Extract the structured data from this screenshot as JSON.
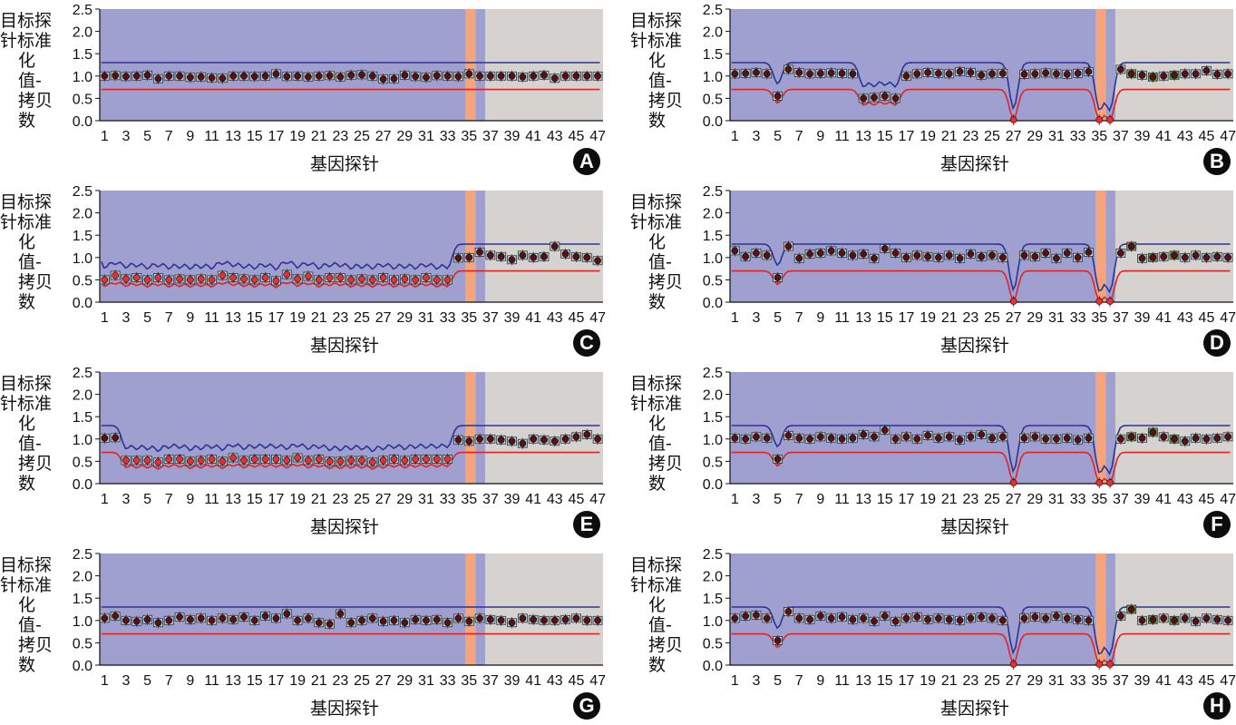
{
  "figure": {
    "ylabel_line1": "目标探针标准",
    "ylabel_line2": "化值-拷贝数",
    "xlabel": "基因探针",
    "colors": {
      "bg_main": "#9f9fd0",
      "bg_gray": "#d6d2d0",
      "orange_band": "#f6a47a",
      "upper_line": "#2b3596",
      "lower_line": "#e02424",
      "box_blue": "#a9d8ec",
      "box_green": "#46b049",
      "point_dark": "#5a1010",
      "point_red": "#e53030",
      "point_purple": "#8a3f9a"
    }
  },
  "chart_data": [
    {
      "panel": "A",
      "type": "scatter",
      "xlabel": "基因探针",
      "ylabel": "目标探针标准化值-拷贝数",
      "ylim": [
        0,
        2.5
      ],
      "yticks": [
        0,
        0.5,
        1.0,
        1.5,
        2.0,
        2.5
      ],
      "xticks": [
        1,
        3,
        5,
        7,
        9,
        11,
        13,
        15,
        17,
        19,
        21,
        23,
        25,
        27,
        29,
        31,
        33,
        35,
        37,
        39,
        41,
        43,
        45,
        47
      ],
      "x": [
        1,
        2,
        3,
        4,
        5,
        6,
        7,
        8,
        9,
        10,
        11,
        12,
        13,
        14,
        15,
        16,
        17,
        18,
        19,
        20,
        21,
        22,
        23,
        24,
        25,
        26,
        27,
        28,
        29,
        30,
        31,
        32,
        33,
        34,
        35,
        36,
        37,
        38,
        39,
        40,
        41,
        42,
        43,
        44,
        45,
        46,
        47
      ],
      "y": [
        1.0,
        1.01,
        0.99,
        1.0,
        1.02,
        0.94,
        1.0,
        1.0,
        0.97,
        0.98,
        0.96,
        0.95,
        1.0,
        1.0,
        0.99,
        1.0,
        1.05,
        0.99,
        1.0,
        0.98,
        1.0,
        1.01,
        0.98,
        1.02,
        1.03,
        1.0,
        0.93,
        0.94,
        1.02,
        0.99,
        0.97,
        1.01,
        1.0,
        0.99,
        1.05,
        1.0,
        1.0,
        1.0,
        1.0,
        0.98,
        1.0,
        1.02,
        0.95,
        1.0,
        1.0,
        1.0,
        1.0
      ],
      "upper_threshold": 1.3,
      "lower_threshold": 0.7,
      "badge": "A"
    },
    {
      "panel": "B",
      "type": "scatter",
      "xlabel": "基因探针",
      "ylabel": "目标探针标准化值-拷贝数",
      "ylim": [
        0,
        2.5
      ],
      "yticks": [
        0,
        0.5,
        1.0,
        1.5,
        2.0,
        2.5
      ],
      "xticks": [
        1,
        3,
        5,
        7,
        9,
        11,
        13,
        15,
        17,
        19,
        21,
        23,
        25,
        27,
        29,
        31,
        33,
        35,
        37,
        39,
        41,
        43,
        45,
        47
      ],
      "x": [
        1,
        2,
        3,
        4,
        5,
        6,
        7,
        8,
        9,
        10,
        11,
        12,
        13,
        14,
        15,
        16,
        17,
        18,
        19,
        20,
        21,
        22,
        23,
        24,
        25,
        26,
        27,
        28,
        29,
        30,
        31,
        32,
        33,
        34,
        35,
        36,
        37,
        38,
        39,
        40,
        41,
        42,
        43,
        44,
        45,
        46,
        47
      ],
      "y": [
        1.05,
        1.06,
        1.08,
        1.05,
        0.55,
        1.15,
        1.08,
        1.05,
        1.06,
        1.07,
        1.06,
        1.05,
        0.5,
        0.52,
        0.55,
        0.5,
        1.0,
        1.05,
        1.08,
        1.06,
        1.05,
        1.1,
        1.08,
        1.02,
        1.05,
        1.06,
        0.02,
        1.04,
        1.05,
        1.07,
        1.05,
        1.04,
        1.06,
        1.1,
        0.02,
        0.02,
        1.15,
        1.05,
        1.02,
        0.98,
        1.0,
        1.02,
        1.05,
        1.05,
        1.12,
        1.04,
        1.05
      ],
      "upper_threshold": 1.3,
      "lower_threshold": 0.7,
      "badge": "B"
    },
    {
      "panel": "C",
      "type": "scatter",
      "xlabel": "基因探针",
      "ylabel": "目标探针标准化值-拷贝数",
      "ylim": [
        0,
        2.5
      ],
      "yticks": [
        0,
        0.5,
        1.0,
        1.5,
        2.0,
        2.5
      ],
      "xticks": [
        1,
        3,
        5,
        7,
        9,
        11,
        13,
        15,
        17,
        19,
        21,
        23,
        25,
        27,
        29,
        31,
        33,
        35,
        37,
        39,
        41,
        43,
        45,
        47
      ],
      "x": [
        1,
        2,
        3,
        4,
        5,
        6,
        7,
        8,
        9,
        10,
        11,
        12,
        13,
        14,
        15,
        16,
        17,
        18,
        19,
        20,
        21,
        22,
        23,
        24,
        25,
        26,
        27,
        28,
        29,
        30,
        31,
        32,
        33,
        34,
        35,
        36,
        37,
        38,
        39,
        40,
        41,
        42,
        43,
        44,
        45,
        46,
        47
      ],
      "y": [
        0.5,
        0.6,
        0.52,
        0.55,
        0.5,
        0.55,
        0.5,
        0.52,
        0.5,
        0.52,
        0.5,
        0.6,
        0.55,
        0.52,
        0.5,
        0.55,
        0.48,
        0.62,
        0.52,
        0.58,
        0.5,
        0.55,
        0.55,
        0.5,
        0.52,
        0.5,
        0.55,
        0.5,
        0.52,
        0.5,
        0.55,
        0.5,
        0.5,
        0.99,
        1.0,
        1.12,
        1.05,
        1.02,
        0.95,
        1.05,
        1.0,
        1.02,
        1.25,
        1.08,
        1.02,
        1.0,
        0.93
      ],
      "upper_threshold": 1.3,
      "lower_threshold": 0.7,
      "badge": "C"
    },
    {
      "panel": "D",
      "type": "scatter",
      "xlabel": "基因探针",
      "ylabel": "目标探针标准化值-拷贝数",
      "ylim": [
        0,
        2.5
      ],
      "yticks": [
        0,
        0.5,
        1.0,
        1.5,
        2.0,
        2.5
      ],
      "xticks": [
        1,
        3,
        5,
        7,
        9,
        11,
        13,
        15,
        17,
        19,
        21,
        23,
        25,
        27,
        29,
        31,
        33,
        35,
        37,
        39,
        41,
        43,
        45,
        47
      ],
      "x": [
        1,
        2,
        3,
        4,
        5,
        6,
        7,
        8,
        9,
        10,
        11,
        12,
        13,
        14,
        15,
        16,
        17,
        18,
        19,
        20,
        21,
        22,
        23,
        24,
        25,
        26,
        27,
        28,
        29,
        30,
        31,
        32,
        33,
        34,
        35,
        36,
        37,
        38,
        39,
        40,
        41,
        42,
        43,
        44,
        45,
        46,
        47
      ],
      "y": [
        1.15,
        1.02,
        1.1,
        1.05,
        0.55,
        1.25,
        0.98,
        1.08,
        1.1,
        1.15,
        1.1,
        1.05,
        1.08,
        0.98,
        1.2,
        1.1,
        1.0,
        1.05,
        1.02,
        1.0,
        1.05,
        0.98,
        1.08,
        1.02,
        1.05,
        1.0,
        0.02,
        1.05,
        1.02,
        1.1,
        0.98,
        1.1,
        1.0,
        1.12,
        0.02,
        0.02,
        1.1,
        1.25,
        0.98,
        1.0,
        1.02,
        1.05,
        1.0,
        1.05,
        1.0,
        1.02,
        1.0
      ],
      "upper_threshold": 1.3,
      "lower_threshold": 0.7,
      "badge": "D"
    },
    {
      "panel": "E",
      "type": "scatter",
      "xlabel": "基因探针",
      "ylabel": "目标探针标准化值-拷贝数",
      "ylim": [
        0,
        2.5
      ],
      "yticks": [
        0,
        0.5,
        1.0,
        1.5,
        2.0,
        2.5
      ],
      "xticks": [
        1,
        3,
        5,
        7,
        9,
        11,
        13,
        15,
        17,
        19,
        21,
        23,
        25,
        27,
        29,
        31,
        33,
        35,
        37,
        39,
        41,
        43,
        45,
        47
      ],
      "x": [
        1,
        2,
        3,
        4,
        5,
        6,
        7,
        8,
        9,
        10,
        11,
        12,
        13,
        14,
        15,
        16,
        17,
        18,
        19,
        20,
        21,
        22,
        23,
        24,
        25,
        26,
        27,
        28,
        29,
        30,
        31,
        32,
        33,
        34,
        35,
        36,
        37,
        38,
        39,
        40,
        41,
        42,
        43,
        44,
        45,
        46,
        47
      ],
      "y": [
        1.02,
        1.03,
        0.52,
        0.52,
        0.52,
        0.48,
        0.55,
        0.55,
        0.5,
        0.52,
        0.55,
        0.5,
        0.58,
        0.52,
        0.55,
        0.55,
        0.55,
        0.52,
        0.58,
        0.52,
        0.55,
        0.5,
        0.5,
        0.52,
        0.52,
        0.48,
        0.52,
        0.55,
        0.52,
        0.55,
        0.55,
        0.55,
        0.55,
        0.98,
        0.95,
        1.0,
        1.0,
        0.98,
        0.95,
        0.9,
        1.0,
        0.98,
        0.95,
        1.0,
        1.05,
        1.1,
        1.0
      ],
      "upper_threshold": 1.3,
      "lower_threshold": 0.7,
      "badge": "E"
    },
    {
      "panel": "F",
      "type": "scatter",
      "xlabel": "基因探针",
      "ylabel": "目标探针标准化值-拷贝数",
      "ylim": [
        0,
        2.5
      ],
      "yticks": [
        0,
        0.5,
        1.0,
        1.5,
        2.0,
        2.5
      ],
      "xticks": [
        1,
        3,
        5,
        7,
        9,
        11,
        13,
        15,
        17,
        19,
        21,
        23,
        25,
        27,
        29,
        31,
        33,
        35,
        37,
        39,
        41,
        43,
        45,
        47
      ],
      "x": [
        1,
        2,
        3,
        4,
        5,
        6,
        7,
        8,
        9,
        10,
        11,
        12,
        13,
        14,
        15,
        16,
        17,
        18,
        19,
        20,
        21,
        22,
        23,
        24,
        25,
        26,
        27,
        28,
        29,
        30,
        31,
        32,
        33,
        34,
        35,
        36,
        37,
        38,
        39,
        40,
        41,
        42,
        43,
        44,
        45,
        46,
        47
      ],
      "y": [
        1.02,
        1.0,
        1.05,
        1.02,
        0.55,
        1.08,
        1.02,
        1.0,
        1.05,
        1.02,
        1.0,
        1.02,
        1.1,
        1.05,
        1.2,
        1.0,
        1.05,
        1.0,
        1.08,
        1.02,
        1.05,
        0.98,
        1.05,
        1.1,
        1.02,
        1.05,
        0.02,
        1.02,
        1.05,
        1.0,
        1.0,
        1.02,
        0.98,
        1.02,
        0.02,
        0.02,
        1.0,
        1.05,
        1.02,
        1.15,
        1.05,
        1.0,
        0.95,
        1.02,
        1.0,
        1.02,
        1.05
      ],
      "upper_threshold": 1.3,
      "lower_threshold": 0.7,
      "badge": "F"
    },
    {
      "panel": "G",
      "type": "scatter",
      "xlabel": "基因探针",
      "ylabel": "目标探针标准化值-拷贝数",
      "ylim": [
        0,
        2.5
      ],
      "yticks": [
        0,
        0.5,
        1.0,
        1.5,
        2.0,
        2.5
      ],
      "xticks": [
        1,
        3,
        5,
        7,
        9,
        11,
        13,
        15,
        17,
        19,
        21,
        23,
        25,
        27,
        29,
        31,
        33,
        35,
        37,
        39,
        41,
        43,
        45,
        47
      ],
      "x": [
        1,
        2,
        3,
        4,
        5,
        6,
        7,
        8,
        9,
        10,
        11,
        12,
        13,
        14,
        15,
        16,
        17,
        18,
        19,
        20,
        21,
        22,
        23,
        24,
        25,
        26,
        27,
        28,
        29,
        30,
        31,
        32,
        33,
        34,
        35,
        36,
        37,
        38,
        39,
        40,
        41,
        42,
        43,
        44,
        45,
        46,
        47
      ],
      "y": [
        1.05,
        1.1,
        1.0,
        0.98,
        1.02,
        0.95,
        1.0,
        1.08,
        1.02,
        1.05,
        1.0,
        1.05,
        1.02,
        1.08,
        1.0,
        1.1,
        1.05,
        1.15,
        1.0,
        1.05,
        0.95,
        0.92,
        1.15,
        0.95,
        1.0,
        1.05,
        0.98,
        1.0,
        0.95,
        1.02,
        1.0,
        1.02,
        0.95,
        1.05,
        0.98,
        1.05,
        1.02,
        1.0,
        0.95,
        1.05,
        1.02,
        1.0,
        1.0,
        1.02,
        1.05,
        1.0,
        1.0
      ],
      "upper_threshold": 1.3,
      "lower_threshold": 0.7,
      "badge": "G"
    },
    {
      "panel": "H",
      "type": "scatter",
      "xlabel": "基因探针",
      "ylabel": "目标探针标准化值-拷贝数",
      "ylim": [
        0,
        2.5
      ],
      "yticks": [
        0,
        0.5,
        1.0,
        1.5,
        2.0,
        2.5
      ],
      "xticks": [
        1,
        3,
        5,
        7,
        9,
        11,
        13,
        15,
        17,
        19,
        21,
        23,
        25,
        27,
        29,
        31,
        33,
        35,
        37,
        39,
        41,
        43,
        45,
        47
      ],
      "x": [
        1,
        2,
        3,
        4,
        5,
        6,
        7,
        8,
        9,
        10,
        11,
        12,
        13,
        14,
        15,
        16,
        17,
        18,
        19,
        20,
        21,
        22,
        23,
        24,
        25,
        26,
        27,
        28,
        29,
        30,
        31,
        32,
        33,
        34,
        35,
        36,
        37,
        38,
        39,
        40,
        41,
        42,
        43,
        44,
        45,
        46,
        47
      ],
      "y": [
        1.05,
        1.1,
        1.12,
        1.05,
        0.55,
        1.2,
        1.05,
        1.02,
        1.1,
        1.05,
        1.08,
        1.02,
        1.05,
        0.98,
        1.1,
        0.98,
        1.05,
        1.08,
        1.02,
        1.05,
        1.02,
        1.0,
        1.05,
        1.08,
        1.05,
        1.0,
        0.02,
        1.05,
        1.08,
        1.05,
        1.1,
        1.05,
        1.02,
        1.0,
        0.02,
        0.02,
        1.1,
        1.25,
        1.0,
        1.02,
        1.05,
        1.0,
        1.05,
        0.98,
        1.05,
        1.02,
        1.0
      ],
      "upper_threshold": 1.3,
      "lower_threshold": 0.7,
      "badge": "H"
    }
  ]
}
